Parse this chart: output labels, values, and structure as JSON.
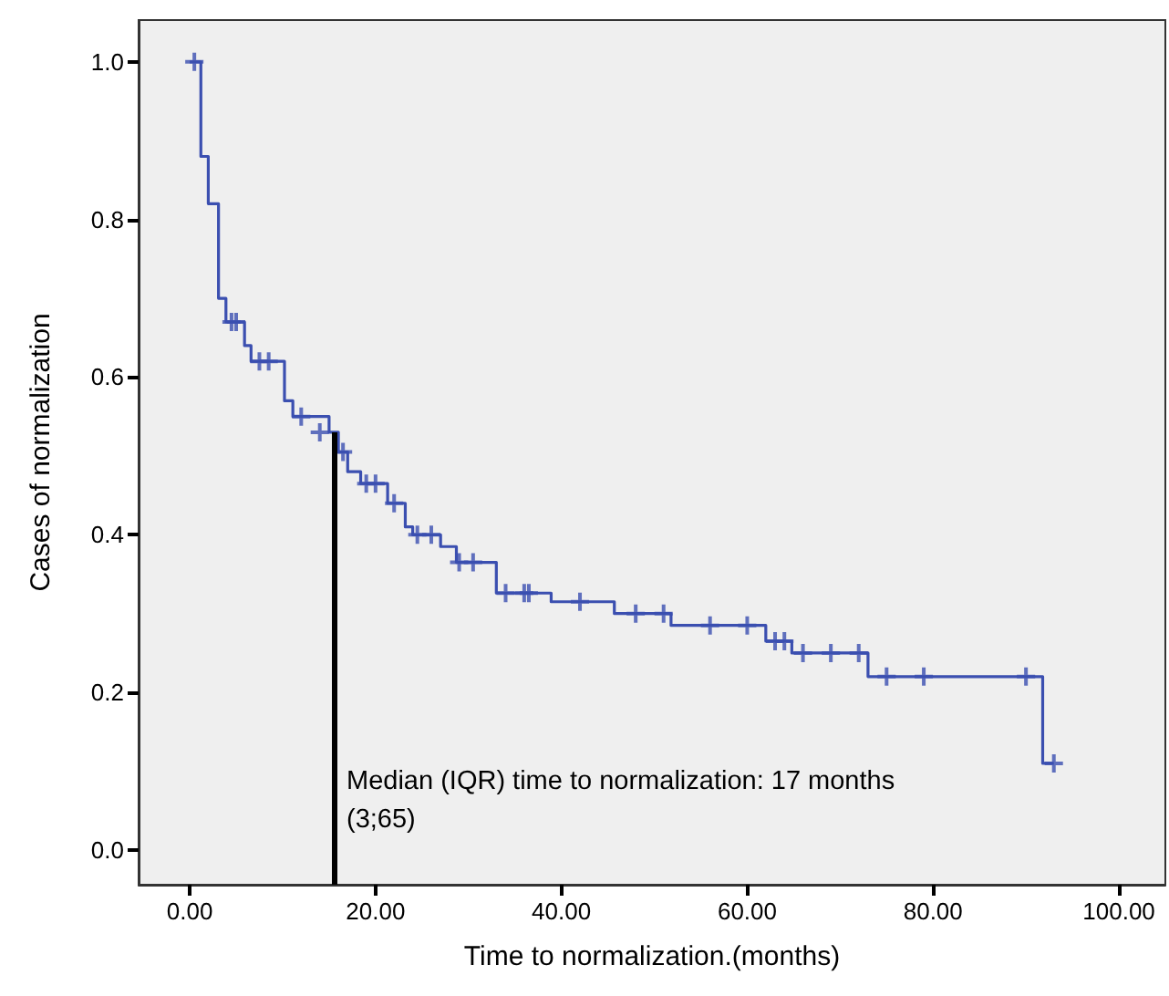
{
  "chart_data": {
    "type": "step",
    "xlabel": "Time to normalization.(months)",
    "ylabel": "Cases of normalization",
    "annotations": [
      "Median (IQR) time to normalization: 17 months\n(3;65)"
    ],
    "xlim": [
      -5.5,
      105
    ],
    "ylim": [
      -0.044,
      1.053
    ],
    "xticks": [
      {
        "value": 0,
        "label": "0.00"
      },
      {
        "value": 20,
        "label": "20.00"
      },
      {
        "value": 40,
        "label": "40.00"
      },
      {
        "value": 60,
        "label": "60.00"
      },
      {
        "value": 80,
        "label": "80.00"
      },
      {
        "value": 100,
        "label": "100.00"
      }
    ],
    "yticks": [
      {
        "value": 0,
        "label": "0.0"
      },
      {
        "value": 0.2,
        "label": "0.2"
      },
      {
        "value": 0.4,
        "label": "0.4"
      },
      {
        "value": 0.6,
        "label": "0.6"
      },
      {
        "value": 0.8,
        "label": "0.8"
      },
      {
        "value": 1,
        "label": "1.0"
      }
    ],
    "grid": false,
    "ref_lines": [
      {
        "axis": "x",
        "value": 15.5,
        "color": "#000000",
        "line_style": "solid"
      }
    ],
    "series": [
      {
        "color": "#3b4fb0",
        "marker": "none",
        "x": [
          0,
          1.2,
          2.0,
          3.1,
          3.9,
          5.9,
          6.6,
          10.2,
          11.1,
          15,
          16,
          17,
          18.4,
          21.3,
          23.2,
          24,
          27,
          28.7,
          33,
          38.9,
          45.7,
          51.8,
          62,
          64.8,
          73,
          91.8,
          93
        ],
        "values": [
          1.0,
          0.88,
          0.82,
          0.7,
          0.67,
          0.64,
          0.62,
          0.57,
          0.55,
          0.53,
          0.505,
          0.48,
          0.465,
          0.44,
          0.41,
          0.4,
          0.385,
          0.365,
          0.326,
          0.315,
          0.3,
          0.285,
          0.265,
          0.25,
          0.22,
          0.11,
          0.11
        ]
      },
      {
        "type": "scatter",
        "color": "#3b4fb0",
        "marker": "cross",
        "x": [
          0.5,
          4.5,
          5,
          7.5,
          8.5,
          12,
          14,
          16.5,
          19,
          20,
          22,
          24.5,
          26,
          29,
          30.5,
          34,
          36,
          36.5,
          42,
          48,
          51,
          56,
          60,
          63,
          64,
          66,
          69,
          72,
          75,
          79,
          90,
          93
        ],
        "values": [
          1.0,
          0.67,
          0.67,
          0.62,
          0.62,
          0.55,
          0.53,
          0.505,
          0.465,
          0.465,
          0.44,
          0.4,
          0.4,
          0.365,
          0.365,
          0.326,
          0.326,
          0.326,
          0.315,
          0.3,
          0.3,
          0.285,
          0.285,
          0.265,
          0.265,
          0.25,
          0.25,
          0.25,
          0.22,
          0.22,
          0.22,
          0.11
        ]
      }
    ]
  }
}
